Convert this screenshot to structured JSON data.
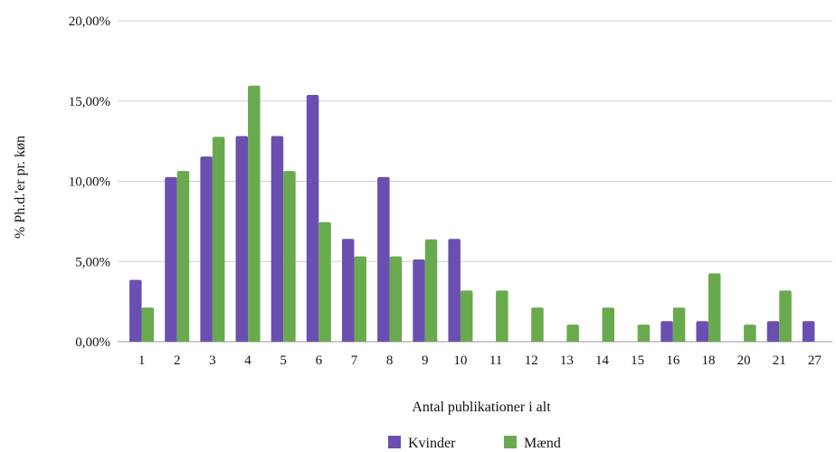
{
  "chart_data": {
    "type": "bar",
    "title": "",
    "xlabel": "Antal publikationer i alt",
    "ylabel": "% Ph.d.'er pr. køn",
    "categories": [
      "1",
      "2",
      "3",
      "4",
      "5",
      "6",
      "7",
      "8",
      "9",
      "10",
      "11",
      "12",
      "13",
      "14",
      "15",
      "16",
      "18",
      "20",
      "21",
      "27"
    ],
    "yticks": [
      "0,00%",
      "5,00%",
      "10,00%",
      "15,00%",
      "20,00%"
    ],
    "ylim": [
      0,
      20
    ],
    "grid": true,
    "legend_position": "bottom",
    "series": [
      {
        "name": "Kvinder",
        "color": "#6a4fb0",
        "values": [
          3.85,
          10.26,
          11.54,
          12.82,
          12.82,
          15.38,
          6.41,
          10.26,
          5.13,
          6.41,
          0,
          0,
          0,
          0,
          0,
          1.28,
          1.28,
          0,
          1.28,
          1.28
        ]
      },
      {
        "name": "Mænd",
        "color": "#6aaa4e",
        "values": [
          2.13,
          10.64,
          12.77,
          15.96,
          10.64,
          7.45,
          5.32,
          5.32,
          6.38,
          3.19,
          3.19,
          2.13,
          1.06,
          2.13,
          1.06,
          2.13,
          4.26,
          1.06,
          3.19,
          0
        ]
      }
    ]
  }
}
